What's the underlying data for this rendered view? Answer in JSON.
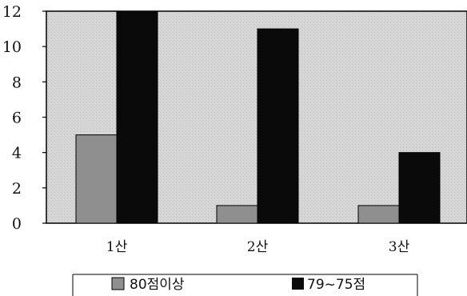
{
  "chart_data": {
    "type": "bar",
    "title": "",
    "xlabel": "",
    "ylabel": "",
    "categories": [
      "1산",
      "2산",
      "3산"
    ],
    "series": [
      {
        "name": "80점이상",
        "values": [
          5,
          1,
          1
        ],
        "color": "#8f8f8f"
      },
      {
        "name": "79~75점",
        "values": [
          12,
          11,
          4
        ],
        "color": "#0a0a0a"
      }
    ],
    "ylim": [
      0,
      12
    ],
    "yticks": [
      "0",
      "2",
      "4",
      "6",
      "8",
      "10",
      "12"
    ],
    "grid": false,
    "legend_position": "bottom",
    "plot_background": "#d6d6d6"
  }
}
